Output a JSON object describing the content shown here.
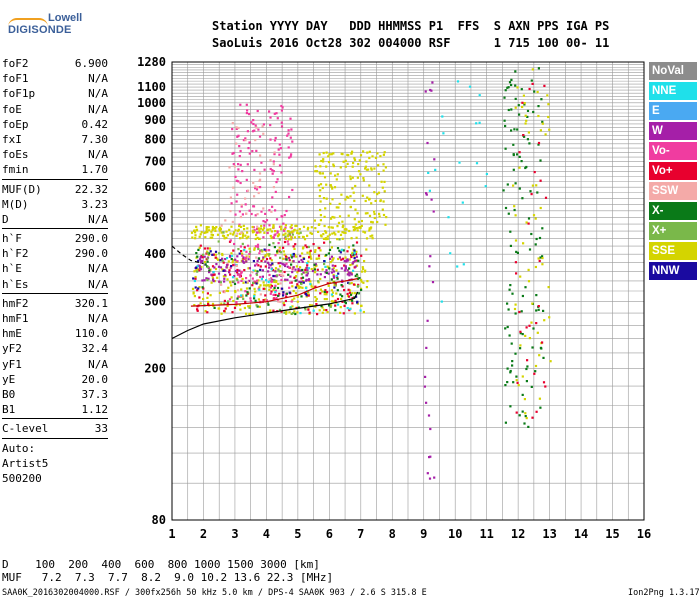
{
  "logo": {
    "line1": "Lowell",
    "line2": "DIGISONDE",
    "swoosh_color": "#f0a020",
    "text_color": "#3b5f99"
  },
  "header": {
    "line1": "Station YYYY DAY   DDD HHMMSS P1  FFS  S AXN PPS IGA PS",
    "line2": "SaoLuis 2016 Oct28 302 004000 RSF      1 715 100 00- 11"
  },
  "params": [
    {
      "name": "foF2",
      "value": "6.900"
    },
    {
      "name": "foF1",
      "value": "N/A"
    },
    {
      "name": "foF1p",
      "value": "N/A"
    },
    {
      "name": "foE",
      "value": "N/A"
    },
    {
      "name": "foEp",
      "value": "0.42"
    },
    {
      "name": "fxI",
      "value": "7.30"
    },
    {
      "name": "foEs",
      "value": "N/A"
    },
    {
      "name": "fmin",
      "value": "1.70"
    },
    {
      "sep": true
    },
    {
      "name": "MUF(D)",
      "value": "22.32"
    },
    {
      "name": "M(D)",
      "value": "3.23"
    },
    {
      "name": "D",
      "value": "N/A"
    },
    {
      "sep": true
    },
    {
      "name": "h`F",
      "value": "290.0"
    },
    {
      "name": "h`F2",
      "value": "290.0"
    },
    {
      "name": "h`E",
      "value": "N/A"
    },
    {
      "name": "h`Es",
      "value": "N/A"
    },
    {
      "sep": true
    },
    {
      "name": "hmF2",
      "value": "320.1"
    },
    {
      "name": "hmF1",
      "value": "N/A"
    },
    {
      "name": "hmE",
      "value": "110.0"
    },
    {
      "name": "yF2",
      "value": "32.4"
    },
    {
      "name": "yF1",
      "value": "N/A"
    },
    {
      "name": "yE",
      "value": "20.0"
    },
    {
      "name": "B0",
      "value": "37.3"
    },
    {
      "name": "B1",
      "value": "1.12"
    },
    {
      "sep": true
    },
    {
      "name": "C-level",
      "value": "33"
    },
    {
      "sep": true
    },
    {
      "name": "Auto:",
      "value": ""
    },
    {
      "name": "Artist5",
      "value": ""
    },
    {
      "name": "500200",
      "value": ""
    }
  ],
  "legend": [
    {
      "label": "NoVal",
      "color": "#8c8c8c"
    },
    {
      "label": "NNE",
      "color": "#1fe0ea"
    },
    {
      "label": "E",
      "color": "#4aa9f2"
    },
    {
      "label": "W",
      "color": "#a51fa8"
    },
    {
      "label": "Vo-",
      "color": "#f03ca0"
    },
    {
      "label": "Vo+",
      "color": "#e8002e"
    },
    {
      "label": "SSW",
      "color": "#f4aaa8"
    },
    {
      "label": "X-",
      "color": "#0a7a18"
    },
    {
      "label": "X+",
      "color": "#7ab84a"
    },
    {
      "label": "SSE",
      "color": "#d4d400"
    },
    {
      "label": "NNW",
      "color": "#1a0aa0"
    }
  ],
  "footer": {
    "d_line": "D    100  200  400  600  800 1000 1500 3000 [km]",
    "muf_line": "MUF   7.2  7.3  7.7  8.2  9.0 10.2 13.6 22.3 [MHz]",
    "file_line": "SAA0K_2016302004000.RSF / 300fx256h 50 kHz 5.0 km / DPS-4 SAA0K 903 / 2.6 S 315.8 E",
    "version": "Ion2Png 1.3.17"
  },
  "chart_data": {
    "type": "scatter",
    "xlim": [
      1,
      16
    ],
    "ylim": [
      80,
      1280
    ],
    "x_ticks": [
      "1",
      "2",
      "3",
      "4",
      "5",
      "6",
      "7",
      "8",
      "9",
      "10",
      "11",
      "12",
      "13",
      "14",
      "15",
      "16"
    ],
    "y_ticks": [
      {
        "value": 80,
        "label": "80"
      },
      {
        "value": 200,
        "label": "200"
      },
      {
        "value": 300,
        "label": "300"
      },
      {
        "value": 400,
        "label": "400"
      },
      {
        "value": 500,
        "label": "500"
      },
      {
        "value": 600,
        "label": "600"
      },
      {
        "value": 700,
        "label": "700"
      },
      {
        "value": 800,
        "label": "800"
      },
      {
        "value": 900,
        "label": "900"
      },
      {
        "value": 1000,
        "label": "1000"
      },
      {
        "value": 1100,
        "label": "1100"
      },
      {
        "value": 1280,
        "label": "1280"
      }
    ],
    "y_scale": "logarithmic",
    "grid": true,
    "curves": [
      {
        "name": "hmF2 profile",
        "color": "#000000",
        "x": [
          1.0,
          1.5,
          2.0,
          3.0,
          4.0,
          5.0,
          6.0,
          6.8,
          6.9
        ],
        "y": [
          240,
          252,
          262,
          272,
          280,
          288,
          296,
          306,
          318
        ]
      },
      {
        "name": "h`F trace",
        "color": "#c00000",
        "x": [
          1.6,
          2.0,
          3.0,
          4.0,
          5.0,
          5.5,
          6.0,
          6.5,
          6.9
        ],
        "y": [
          292,
          293,
          295,
          300,
          312,
          325,
          335,
          340,
          345
        ]
      },
      {
        "name": "left branch",
        "color": "#000000",
        "dashed": true,
        "x": [
          1.0,
          1.3,
          1.6,
          2.0
        ],
        "y": [
          420,
          400,
          385,
          378
        ]
      }
    ],
    "scatter_regions": [
      {
        "label": "SSE",
        "color": "#d4d400",
        "x": [
          1.6,
          7.2
        ],
        "y": [
          280,
          420
        ],
        "n": 320
      },
      {
        "label": "Vo+",
        "color": "#e8002e",
        "x": [
          1.7,
          7.0
        ],
        "y": [
          280,
          440
        ],
        "n": 150
      },
      {
        "label": "W",
        "color": "#a51fa8",
        "x": [
          1.7,
          7.0
        ],
        "y": [
          340,
          400
        ],
        "n": 160
      },
      {
        "label": "Vo-",
        "color": "#f03ca0",
        "x": [
          2.8,
          4.8
        ],
        "y": [
          300,
          1000
        ],
        "n": 220
      },
      {
        "label": "SSE",
        "color": "#d4d400",
        "x": [
          1.6,
          7.4
        ],
        "y": [
          440,
          480
        ],
        "n": 200
      },
      {
        "label": "SSE",
        "color": "#d4d400",
        "x": [
          5.5,
          7.8
        ],
        "y": [
          480,
          750
        ],
        "n": 160
      },
      {
        "label": "X-",
        "color": "#0a7a18",
        "x": [
          1.6,
          7.0
        ],
        "y": [
          280,
          430
        ],
        "n": 80
      },
      {
        "label": "NNE",
        "color": "#1fe0ea",
        "x": [
          1.6,
          7.0
        ],
        "y": [
          280,
          420
        ],
        "n": 40
      },
      {
        "label": "NNW",
        "color": "#1a0aa0",
        "x": [
          1.6,
          7.0
        ],
        "y": [
          300,
          420
        ],
        "n": 40
      },
      {
        "label": "SSW",
        "color": "#f4aaa8",
        "x": [
          2.5,
          4.5
        ],
        "y": [
          300,
          900
        ],
        "n": 60
      },
      {
        "label": "X+",
        "color": "#7ab84a",
        "x": [
          1.6,
          7.0
        ],
        "y": [
          280,
          460
        ],
        "n": 60
      },
      {
        "label": "mixed",
        "color": "#0a7a18",
        "x": [
          11.5,
          12.8
        ],
        "y": [
          140,
          1250
        ],
        "n": 120
      },
      {
        "label": "mixed",
        "color": "#d4d400",
        "x": [
          11.8,
          13.0
        ],
        "y": [
          140,
          1250
        ],
        "n": 60
      },
      {
        "label": "mixed",
        "color": "#e8002e",
        "x": [
          11.8,
          12.9
        ],
        "y": [
          140,
          1200
        ],
        "n": 30
      },
      {
        "label": "mixed",
        "color": "#a51fa8",
        "x": [
          9.0,
          9.3
        ],
        "y": [
          90,
          1150
        ],
        "n": 25
      },
      {
        "label": "mixed",
        "color": "#1fe0ea",
        "x": [
          9.0,
          11.0
        ],
        "y": [
          300,
          1150
        ],
        "n": 20
      }
    ]
  }
}
